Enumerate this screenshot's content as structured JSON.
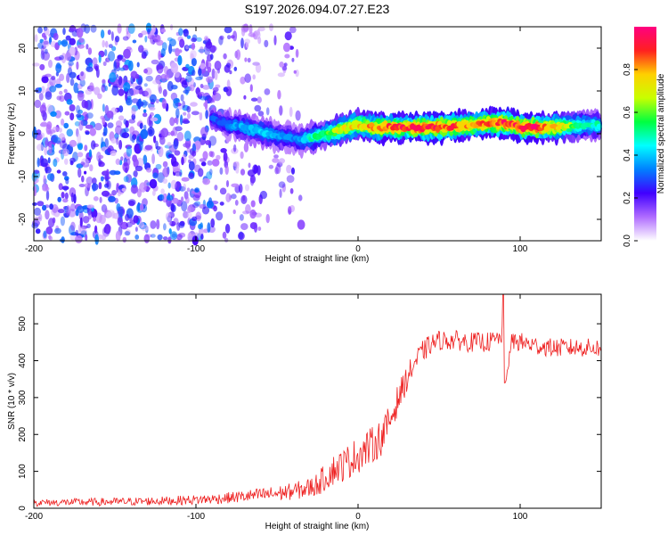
{
  "title": "S197.2026.094.07.27.E23",
  "chart_data": [
    {
      "type": "heatmap",
      "title": "S197.2026.094.07.27.E23",
      "xlabel": "Height of straight line (km)",
      "ylabel": "Frequency (Hz)",
      "xlim": [
        -200,
        150
      ],
      "ylim": [
        -25,
        25
      ],
      "xticks": [
        -200,
        -100,
        0,
        100
      ],
      "yticks": [
        -20,
        -10,
        0,
        10,
        20
      ],
      "colorbar": {
        "label": "Normalized spectral amplitude",
        "range": [
          0,
          1
        ],
        "ticks": [
          "0.0",
          "0.2",
          "0.4",
          "0.6",
          "0.8"
        ],
        "tick_values": [
          0.0,
          0.2,
          0.4,
          0.6,
          0.8
        ],
        "colormap": [
          "#ffffff",
          "#b06cff",
          "#4000ff",
          "#0080ff",
          "#00ffff",
          "#00ff40",
          "#c8ff00",
          "#ffd000",
          "#ff2020",
          "#ff0080"
        ]
      },
      "ridge": {
        "x": [
          -90,
          -80,
          -70,
          -60,
          -50,
          -40,
          -35,
          -30,
          -20,
          -10,
          0,
          10,
          20,
          30,
          50,
          70,
          80,
          90,
          100,
          110,
          120,
          140,
          150
        ],
        "freq": [
          3.5,
          2.0,
          1.5,
          0.5,
          -0.5,
          -1.0,
          -1.5,
          -1.0,
          0.0,
          1.0,
          2.0,
          1.5,
          1.5,
          1.5,
          1.5,
          2.0,
          2.5,
          2.5,
          1.5,
          1.5,
          1.5,
          2.0,
          2.0
        ],
        "amplitude": [
          0.3,
          0.35,
          0.4,
          0.45,
          0.4,
          0.35,
          0.4,
          0.5,
          0.6,
          0.75,
          0.8,
          0.85,
          0.9,
          0.95,
          0.95,
          0.85,
          0.9,
          0.95,
          0.95,
          0.95,
          0.85,
          0.5,
          0.5
        ]
      },
      "noise_region": {
        "x": [
          -200,
          -35
        ],
        "freq": [
          -25,
          25
        ],
        "amplitude_range": [
          0.05,
          0.35
        ]
      }
    },
    {
      "type": "line",
      "xlabel": "Height of straight line (km)",
      "ylabel": "SNR (10 * v/v)",
      "xlim": [
        -200,
        150
      ],
      "ylim": [
        0,
        580
      ],
      "xticks": [
        -200,
        -100,
        0,
        100
      ],
      "yticks": [
        0,
        100,
        200,
        300,
        400,
        500
      ],
      "color": "#ee2020",
      "series": [
        {
          "name": "SNR",
          "x": [
            -200,
            -180,
            -160,
            -140,
            -120,
            -100,
            -90,
            -80,
            -70,
            -60,
            -50,
            -40,
            -30,
            -25,
            -20,
            -15,
            -10,
            -5,
            0,
            5,
            10,
            15,
            20,
            25,
            30,
            35,
            40,
            45,
            50,
            60,
            70,
            80,
            85,
            89,
            90,
            91,
            95,
            100,
            110,
            120,
            130,
            140,
            150
          ],
          "values": [
            15,
            16,
            17,
            18,
            20,
            23,
            25,
            28,
            32,
            36,
            40,
            46,
            55,
            65,
            85,
            105,
            115,
            130,
            145,
            160,
            175,
            195,
            240,
            300,
            350,
            395,
            425,
            445,
            455,
            455,
            450,
            450,
            455,
            470,
            590,
            340,
            455,
            450,
            440,
            435,
            435,
            435,
            435
          ],
          "noise_amplitude": [
            10,
            10,
            11,
            11,
            12,
            13,
            14,
            15,
            17,
            19,
            21,
            23,
            28,
            32,
            38,
            42,
            45,
            48,
            50,
            50,
            50,
            50,
            45,
            40,
            35,
            32,
            30,
            28,
            27,
            27,
            27,
            27,
            27,
            25,
            0,
            0,
            27,
            27,
            25,
            25,
            25,
            25,
            25
          ]
        }
      ]
    }
  ]
}
